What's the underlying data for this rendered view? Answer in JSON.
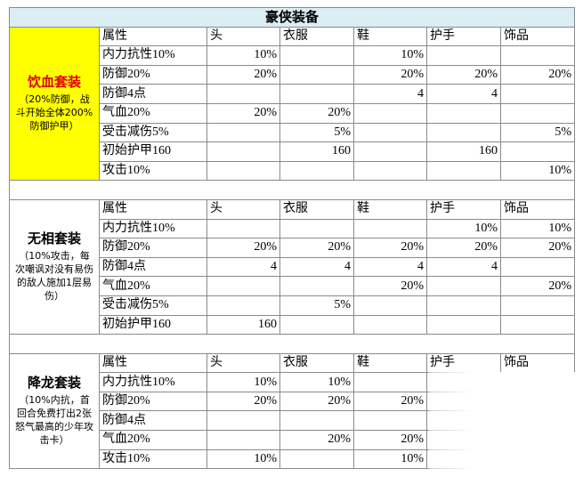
{
  "title": "豪侠装备",
  "sections": [
    {
      "name": "饮血套装",
      "description": "（20%防御，战斗开始全体200%防御护甲）",
      "header": [
        "属性",
        "头",
        "衣服",
        "鞋",
        "护手",
        "饰品"
      ],
      "rows": [
        [
          "内力抗性10%",
          "10%",
          null,
          "10%",
          null,
          null
        ],
        [
          "防御20%",
          "20%",
          null,
          "20%",
          "20%",
          "20%"
        ],
        [
          "防御4点",
          null,
          null,
          4,
          4,
          null
        ],
        [
          "气血20%",
          "20%",
          "20%",
          null,
          null,
          null
        ],
        [
          "受击减伤5%",
          null,
          "5%",
          null,
          null,
          "5%"
        ],
        [
          "初始护甲160",
          null,
          160,
          null,
          160,
          null
        ],
        [
          "攻击10%",
          null,
          null,
          null,
          null,
          "10%"
        ]
      ]
    },
    {
      "name": "无相套装",
      "description": "（10%攻击，每次嘲讽对没有易伤的敌人施加1层易伤）",
      "header": [
        "属性",
        "头",
        "衣服",
        "鞋",
        "护手",
        "饰品"
      ],
      "rows": [
        [
          "内力抗性10%",
          null,
          null,
          null,
          "10%",
          "10%"
        ],
        [
          "防御20%",
          "20%",
          "20%",
          "20%",
          "20%",
          "20%"
        ],
        [
          "防御4点",
          4,
          4,
          4,
          4,
          null
        ],
        [
          "气血20%",
          null,
          null,
          "20%",
          null,
          "20%"
        ],
        [
          "受击减伤5%",
          null,
          "5%",
          null,
          null,
          null
        ],
        [
          "初始护甲160",
          160,
          null,
          null,
          null,
          null
        ]
      ]
    },
    {
      "name": "降龙套装",
      "description": "（10%内抗，首回合免费打出2张怒气最高的少年攻击卡）",
      "header": [
        "属性",
        "头",
        "衣服",
        "鞋",
        "护手",
        "饰品"
      ],
      "rows": [
        [
          "内力抗性10%",
          "10%",
          "10%",
          null,
          null,
          null
        ],
        [
          "防御20%",
          "20%",
          "20%",
          "20%",
          null,
          null
        ],
        [
          "防御4点",
          null,
          null,
          null,
          null,
          null
        ],
        [
          "气血20%",
          null,
          "20%",
          "20%",
          null,
          null
        ],
        [
          "攻击10%",
          "10%",
          null,
          "10%",
          null,
          null
        ]
      ]
    }
  ]
}
